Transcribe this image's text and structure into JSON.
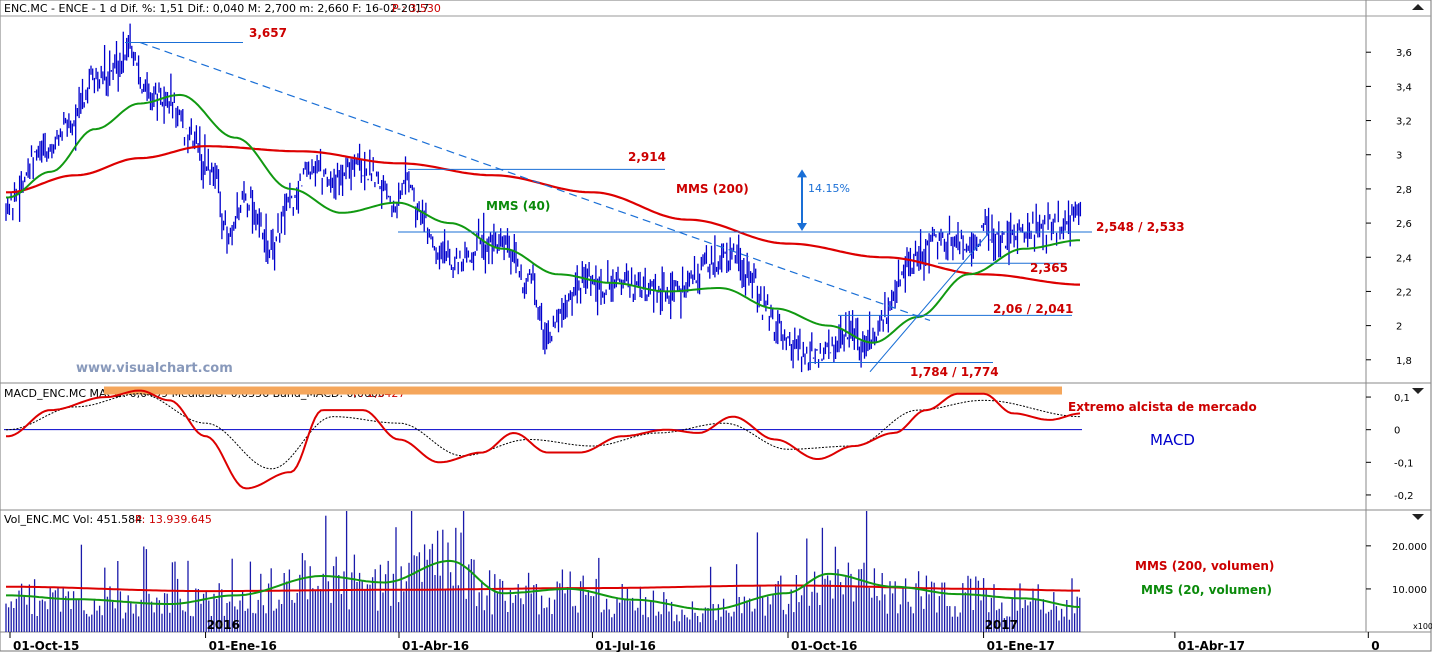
{
  "header": {
    "price_info": "ENC.MC - ENCE - 1 d Dif. %: 1,51 Dif.: 0,040 M: 2,700 m: 2,660 F: 16-02-2017",
    "price_p": "P : 3,530",
    "macd_info": "MACD_ENC.MC MACD: 0,0499 MediaSIG: 0,0356 Band_MACD: 0,0000",
    "macd_p": "P: 1,3427",
    "vol_info": "Vol_ENC.MC Vol: 451.584",
    "vol_p": "P: 13.939.645"
  },
  "watermark": "www.visualchart.com",
  "colors": {
    "price": "#0000cc",
    "mms200": "#dd0000",
    "mms40": "#119911",
    "trend": "#1a6fd6",
    "band": "#f5a65b",
    "macd_line": "#dd0000",
    "signal": "#000000",
    "volume_bars": "#1a1aaa"
  },
  "chart_data": [
    {
      "type": "line",
      "name": "price",
      "x_ticks": [
        "01-Oct-15",
        "01-Ene-16",
        "01-Abr-16",
        "01-Jul-16",
        "01-Oct-16",
        "01-Ene-17",
        "01-Abr-17",
        "0"
      ],
      "x_sub_labels": [
        "2016",
        "2017"
      ],
      "y_ticks": [
        "3,6",
        "3,4",
        "3,2",
        "3",
        "2,8",
        "2,6",
        "2,4",
        "2,2",
        "2",
        "1,8"
      ],
      "ylim": [
        1.67,
        3.73
      ],
      "series": [
        {
          "name": "price",
          "x": [
            "2015-09-30",
            "2015-10-15",
            "2015-11-01",
            "2015-11-10",
            "2015-11-20",
            "2015-11-26",
            "2015-12-05",
            "2015-12-15",
            "2015-12-25",
            "2016-01-05",
            "2016-01-12",
            "2016-01-20",
            "2016-02-01",
            "2016-02-10",
            "2016-02-20",
            "2016-03-01",
            "2016-03-10",
            "2016-03-20",
            "2016-03-31",
            "2016-04-05",
            "2016-04-10",
            "2016-04-20",
            "2016-05-01",
            "2016-05-10",
            "2016-05-20",
            "2016-06-01",
            "2016-06-10",
            "2016-06-20",
            "2016-06-27",
            "2016-07-05",
            "2016-07-15",
            "2016-07-25",
            "2016-08-05",
            "2016-08-15",
            "2016-08-25",
            "2016-09-05",
            "2016-09-15",
            "2016-09-20",
            "2016-09-25",
            "2016-10-05",
            "2016-10-15",
            "2016-10-25",
            "2016-11-01",
            "2016-11-05",
            "2016-11-10",
            "2016-11-15",
            "2016-11-20",
            "2016-11-25",
            "2016-12-01",
            "2016-12-10",
            "2016-12-20",
            "2016-12-25",
            "2017-01-01",
            "2017-01-10",
            "2017-01-20",
            "2017-01-30",
            "2017-02-08",
            "2017-02-16"
          ],
          "values": [
            2.7,
            3.0,
            3.2,
            3.45,
            3.5,
            3.66,
            3.35,
            3.3,
            3.1,
            2.9,
            2.5,
            2.75,
            2.45,
            2.7,
            2.95,
            2.85,
            2.95,
            2.9,
            2.72,
            2.88,
            2.65,
            2.45,
            2.35,
            2.5,
            2.45,
            2.25,
            1.95,
            2.15,
            2.25,
            2.2,
            2.28,
            2.2,
            2.18,
            2.25,
            2.35,
            2.42,
            2.25,
            2.1,
            2.0,
            1.85,
            1.8,
            1.9,
            1.95,
            1.85,
            1.95,
            2.05,
            2.15,
            2.3,
            2.4,
            2.52,
            2.5,
            2.45,
            2.55,
            2.5,
            2.55,
            2.58,
            2.6,
            2.69
          ]
        },
        {
          "name": "MMS (200)",
          "x": [
            "2015-09-30",
            "2015-11-01",
            "2015-12-01",
            "2016-01-01",
            "2016-02-15",
            "2016-04-01",
            "2016-05-15",
            "2016-07-01",
            "2016-08-15",
            "2016-10-01",
            "2016-11-15",
            "2017-01-01",
            "2017-02-16"
          ],
          "values": [
            2.78,
            2.88,
            2.98,
            3.05,
            3.02,
            2.95,
            2.88,
            2.78,
            2.62,
            2.48,
            2.4,
            2.3,
            2.24
          ]
        },
        {
          "name": "MMS (40)",
          "x": [
            "2015-09-30",
            "2015-10-20",
            "2015-11-10",
            "2015-12-01",
            "2015-12-20",
            "2016-01-15",
            "2016-02-10",
            "2016-03-05",
            "2016-03-31",
            "2016-04-25",
            "2016-05-20",
            "2016-06-15",
            "2016-07-10",
            "2016-08-05",
            "2016-08-30",
            "2016-09-25",
            "2016-10-20",
            "2016-11-10",
            "2016-12-01",
            "2016-12-25",
            "2017-01-20",
            "2017-02-16"
          ],
          "values": [
            2.75,
            2.9,
            3.15,
            3.3,
            3.35,
            3.1,
            2.8,
            2.66,
            2.72,
            2.6,
            2.45,
            2.3,
            2.25,
            2.2,
            2.22,
            2.1,
            2.0,
            1.9,
            2.05,
            2.3,
            2.45,
            2.5
          ]
        }
      ],
      "annotations": [
        {
          "label": "3,657",
          "value": 3.657
        },
        {
          "label": "2,914",
          "value": 2.914
        },
        {
          "label": "2,548 / 2,533",
          "value": 2.548
        },
        {
          "label": "2,365",
          "value": 2.365
        },
        {
          "label": "2,06 / 2,041",
          "value": 2.06
        },
        {
          "label": "1,784 / 1,774",
          "value": 1.784
        },
        {
          "label": "14.15%"
        }
      ],
      "legend": [
        "MMS (200)",
        "MMS (40)"
      ]
    },
    {
      "type": "line",
      "name": "MACD",
      "label": "MACD",
      "annotation": "Extremo alcista de mercado",
      "y_ticks": [
        "0,1",
        "0",
        "-0,1",
        "-0,2"
      ],
      "ylim": [
        -0.24,
        0.14
      ],
      "series": [
        {
          "name": "MACD",
          "x": [
            "2015-09-30",
            "2015-10-20",
            "2015-11-15",
            "2015-12-01",
            "2015-12-15",
            "2016-01-01",
            "2016-01-20",
            "2016-02-10",
            "2016-02-25",
            "2016-03-15",
            "2016-04-01",
            "2016-04-20",
            "2016-05-10",
            "2016-05-25",
            "2016-06-10",
            "2016-06-25",
            "2016-07-15",
            "2016-08-05",
            "2016-08-20",
            "2016-09-05",
            "2016-09-25",
            "2016-10-15",
            "2016-11-01",
            "2016-11-20",
            "2016-12-05",
            "2016-12-20",
            "2017-01-01",
            "2017-01-15",
            "2017-02-01",
            "2017-02-16"
          ],
          "values": [
            -0.02,
            0.06,
            0.1,
            0.12,
            0.09,
            -0.02,
            -0.18,
            -0.13,
            0.06,
            0.06,
            -0.03,
            -0.1,
            -0.07,
            -0.01,
            -0.07,
            -0.07,
            -0.02,
            0.0,
            -0.01,
            0.04,
            -0.03,
            -0.09,
            -0.05,
            -0.01,
            0.06,
            0.11,
            0.11,
            0.05,
            0.03,
            0.05
          ]
        },
        {
          "name": "MediaSIG",
          "x": [
            "2015-09-30",
            "2015-11-01",
            "2015-12-01",
            "2016-01-01",
            "2016-02-01",
            "2016-03-01",
            "2016-04-01",
            "2016-05-01",
            "2016-06-01",
            "2016-07-01",
            "2016-08-01",
            "2016-09-01",
            "2016-10-01",
            "2016-11-01",
            "2016-12-01",
            "2017-01-01",
            "2017-02-16"
          ],
          "values": [
            0.0,
            0.07,
            0.11,
            0.02,
            -0.12,
            0.04,
            0.02,
            -0.08,
            -0.03,
            -0.05,
            -0.01,
            0.02,
            -0.06,
            -0.05,
            0.06,
            0.09,
            0.04
          ]
        }
      ]
    },
    {
      "type": "bar",
      "name": "volume",
      "y_ticks": [
        "20.000",
        "10.000"
      ],
      "ylim": [
        0,
        26000
      ],
      "unit_label": "x100",
      "series": [
        {
          "name": "MMS (200, volumen)",
          "x": [
            "2015-09-30",
            "2016-01-01",
            "2016-04-01",
            "2016-07-01",
            "2016-10-01",
            "2017-01-01",
            "2017-02-16"
          ],
          "values": [
            10500,
            9500,
            9800,
            10200,
            10800,
            10000,
            9600
          ]
        },
        {
          "name": "MMS (20, volumen)",
          "x": [
            "2015-09-30",
            "2015-11-01",
            "2015-12-15",
            "2016-01-15",
            "2016-02-25",
            "2016-03-25",
            "2016-04-25",
            "2016-05-20",
            "2016-06-20",
            "2016-07-20",
            "2016-08-25",
            "2016-09-30",
            "2016-10-20",
            "2016-11-20",
            "2016-12-20",
            "2017-01-20",
            "2017-02-16"
          ],
          "values": [
            8500,
            7600,
            6500,
            8500,
            13000,
            11500,
            16500,
            9000,
            10000,
            7500,
            5200,
            9000,
            13500,
            10500,
            8800,
            7800,
            5800
          ]
        }
      ]
    }
  ]
}
